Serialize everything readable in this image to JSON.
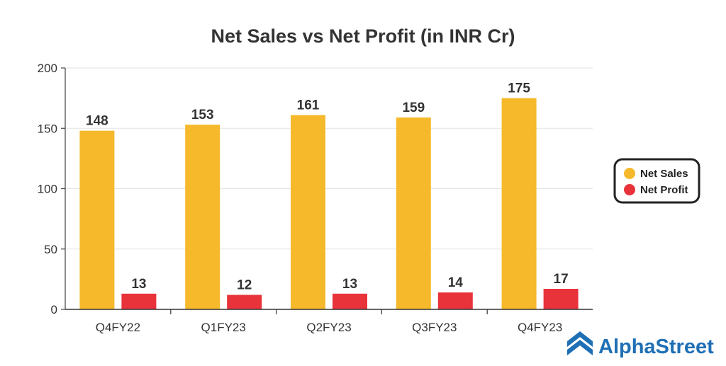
{
  "chart_data": {
    "type": "bar",
    "title": "Net Sales vs Net Profit (in INR Cr)",
    "xlabel": "",
    "ylabel": "",
    "categories": [
      "Q4FY22",
      "Q1FY23",
      "Q2FY23",
      "Q3FY23",
      "Q4FY23"
    ],
    "series": [
      {
        "name": "Net Sales",
        "values": [
          148,
          153,
          161,
          159,
          175
        ],
        "color": "#F6B92B"
      },
      {
        "name": "Net Profit",
        "values": [
          13,
          12,
          13,
          14,
          17
        ],
        "color": "#E8333A"
      }
    ],
    "ylim": [
      0,
      200
    ],
    "yticks": [
      0,
      50,
      100,
      150,
      200
    ],
    "grid": true,
    "legend_position": "right"
  },
  "branding": {
    "name": "AlphaStreet",
    "logo_icon": "alphastreet-logo-icon",
    "color": "#1F6FB5"
  }
}
